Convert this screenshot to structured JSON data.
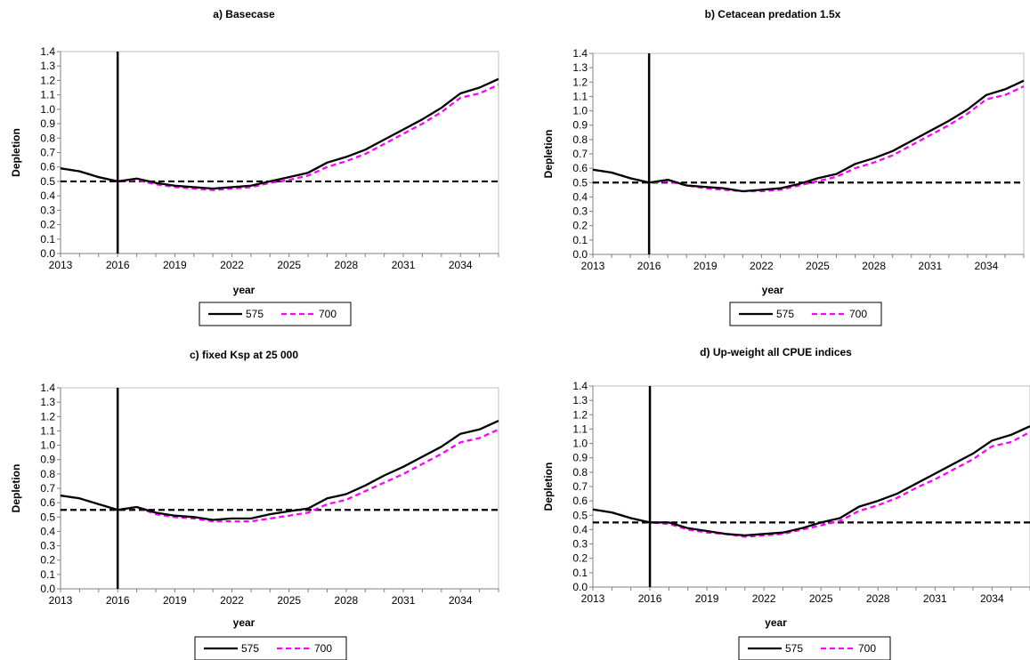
{
  "chart_data": [
    {
      "type": "line",
      "title": "a) Basecase",
      "xlabel": "year",
      "ylabel": "Depletion",
      "xlim": [
        2013,
        2036
      ],
      "xticks": [
        "2013",
        "2016",
        "2019",
        "2022",
        "2025",
        "2028",
        "2031",
        "2034"
      ],
      "ylim": [
        0,
        1.4
      ],
      "yticks": [
        "0.0",
        "0.1",
        "0.2",
        "0.3",
        "0.4",
        "0.5",
        "0.6",
        "0.7",
        "0.8",
        "0.9",
        "1.0",
        "1.1",
        "1.2",
        "1.3",
        "1.4"
      ],
      "x": [
        2013,
        2014,
        2015,
        2016,
        2017,
        2018,
        2019,
        2020,
        2021,
        2022,
        2023,
        2024,
        2025,
        2026,
        2027,
        2028,
        2029,
        2030,
        2031,
        2032,
        2033,
        2034,
        2035,
        2036
      ],
      "series": [
        {
          "name": "575",
          "color": "#000000",
          "dash": "solid",
          "values": [
            0.59,
            0.57,
            0.53,
            0.5,
            0.52,
            0.49,
            0.47,
            0.46,
            0.45,
            0.46,
            0.47,
            0.5,
            0.53,
            0.56,
            0.63,
            0.67,
            0.72,
            0.79,
            0.86,
            0.93,
            1.01,
            1.11,
            1.15,
            1.21
          ]
        },
        {
          "name": "700",
          "color": "#ff00ff",
          "dash": "dashed",
          "values": [
            0.59,
            0.57,
            0.53,
            0.5,
            0.51,
            0.48,
            0.46,
            0.45,
            0.44,
            0.45,
            0.46,
            0.49,
            0.51,
            0.54,
            0.6,
            0.64,
            0.69,
            0.76,
            0.83,
            0.9,
            0.98,
            1.08,
            1.11,
            1.17
          ]
        }
      ],
      "reference": {
        "hline": 0.5,
        "vline": 2016
      },
      "legend": "bottom-center",
      "grid": false
    },
    {
      "type": "line",
      "title": "b) Cetacean predation 1.5x",
      "xlabel": "year",
      "ylabel": "Depletion",
      "xlim": [
        2013,
        2036
      ],
      "xticks": [
        "2013",
        "2016",
        "2019",
        "2022",
        "2025",
        "2028",
        "2031",
        "2034"
      ],
      "ylim": [
        0,
        1.4
      ],
      "yticks": [
        "0.0",
        "0.1",
        "0.2",
        "0.3",
        "0.4",
        "0.5",
        "0.6",
        "0.7",
        "0.8",
        "0.9",
        "1.0",
        "1.1",
        "1.2",
        "1.3",
        "1.4"
      ],
      "x": [
        2013,
        2014,
        2015,
        2016,
        2017,
        2018,
        2019,
        2020,
        2021,
        2022,
        2023,
        2024,
        2025,
        2026,
        2027,
        2028,
        2029,
        2030,
        2031,
        2032,
        2033,
        2034,
        2035,
        2036
      ],
      "series": [
        {
          "name": "575",
          "color": "#000000",
          "dash": "solid",
          "values": [
            0.59,
            0.57,
            0.53,
            0.5,
            0.52,
            0.48,
            0.47,
            0.46,
            0.44,
            0.45,
            0.46,
            0.49,
            0.53,
            0.56,
            0.63,
            0.67,
            0.72,
            0.79,
            0.86,
            0.93,
            1.01,
            1.11,
            1.15,
            1.21
          ]
        },
        {
          "name": "700",
          "color": "#ff00ff",
          "dash": "dashed",
          "values": [
            0.59,
            0.57,
            0.53,
            0.5,
            0.51,
            0.48,
            0.46,
            0.45,
            0.44,
            0.44,
            0.45,
            0.48,
            0.51,
            0.54,
            0.6,
            0.64,
            0.69,
            0.76,
            0.83,
            0.9,
            0.98,
            1.08,
            1.11,
            1.17
          ]
        }
      ],
      "reference": {
        "hline": 0.5,
        "vline": 2016
      },
      "legend": "bottom-center",
      "grid": false
    },
    {
      "type": "line",
      "title": "c) fixed Ksp at 25 000",
      "xlabel": "year",
      "ylabel": "Depletion",
      "xlim": [
        2013,
        2036
      ],
      "xticks": [
        "2013",
        "2016",
        "2019",
        "2022",
        "2025",
        "2028",
        "2031",
        "2034"
      ],
      "ylim": [
        0,
        1.4
      ],
      "yticks": [
        "0.0",
        "0.1",
        "0.2",
        "0.3",
        "0.4",
        "0.5",
        "0.6",
        "0.7",
        "0.8",
        "0.9",
        "1.0",
        "1.1",
        "1.2",
        "1.3",
        "1.4"
      ],
      "x": [
        2013,
        2014,
        2015,
        2016,
        2017,
        2018,
        2019,
        2020,
        2021,
        2022,
        2023,
        2024,
        2025,
        2026,
        2027,
        2028,
        2029,
        2030,
        2031,
        2032,
        2033,
        2034,
        2035,
        2036
      ],
      "series": [
        {
          "name": "575",
          "color": "#000000",
          "dash": "solid",
          "values": [
            0.65,
            0.63,
            0.59,
            0.55,
            0.57,
            0.53,
            0.51,
            0.5,
            0.48,
            0.49,
            0.49,
            0.52,
            0.54,
            0.56,
            0.63,
            0.66,
            0.72,
            0.79,
            0.85,
            0.92,
            0.99,
            1.08,
            1.11,
            1.17
          ]
        },
        {
          "name": "700",
          "color": "#ff00ff",
          "dash": "dashed",
          "values": [
            0.65,
            0.63,
            0.59,
            0.55,
            0.57,
            0.52,
            0.5,
            0.49,
            0.47,
            0.47,
            0.47,
            0.49,
            0.51,
            0.53,
            0.59,
            0.62,
            0.68,
            0.74,
            0.8,
            0.87,
            0.94,
            1.02,
            1.05,
            1.11
          ]
        }
      ],
      "reference": {
        "hline": 0.55,
        "vline": 2016
      },
      "legend": "bottom-center",
      "grid": false
    },
    {
      "type": "line",
      "title": "d) Up-weight all CPUE indices",
      "xlabel": "year",
      "ylabel": "Depletion",
      "xlim": [
        2013,
        2036
      ],
      "xticks": [
        "2013",
        "2016",
        "2019",
        "2022",
        "2025",
        "2028",
        "2031",
        "2034"
      ],
      "ylim": [
        0,
        1.4
      ],
      "yticks": [
        "0.0",
        "0.1",
        "0.2",
        "0.3",
        "0.4",
        "0.5",
        "0.6",
        "0.7",
        "0.8",
        "0.9",
        "1.0",
        "1.1",
        "1.2",
        "1.3",
        "1.4"
      ],
      "x": [
        2013,
        2014,
        2015,
        2016,
        2017,
        2018,
        2019,
        2020,
        2021,
        2022,
        2023,
        2024,
        2025,
        2026,
        2027,
        2028,
        2029,
        2030,
        2031,
        2032,
        2033,
        2034,
        2035,
        2036
      ],
      "series": [
        {
          "name": "575",
          "color": "#000000",
          "dash": "solid",
          "values": [
            0.54,
            0.52,
            0.48,
            0.45,
            0.45,
            0.41,
            0.39,
            0.37,
            0.36,
            0.37,
            0.38,
            0.41,
            0.45,
            0.48,
            0.56,
            0.6,
            0.65,
            0.72,
            0.79,
            0.86,
            0.93,
            1.02,
            1.06,
            1.12
          ]
        },
        {
          "name": "700",
          "color": "#ff00ff",
          "dash": "dashed",
          "values": [
            0.54,
            0.52,
            0.48,
            0.45,
            0.44,
            0.4,
            0.38,
            0.37,
            0.35,
            0.36,
            0.37,
            0.4,
            0.43,
            0.46,
            0.53,
            0.57,
            0.62,
            0.69,
            0.75,
            0.82,
            0.89,
            0.98,
            1.01,
            1.08
          ]
        }
      ],
      "reference": {
        "hline": 0.45,
        "vline": 2016
      },
      "legend": "bottom-center",
      "grid": false
    }
  ]
}
